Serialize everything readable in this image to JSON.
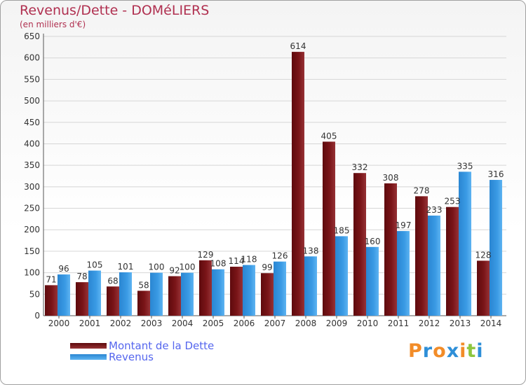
{
  "title": "Revenus/Dette - DOMéLIERS",
  "subtitle": "(en milliers d'€)",
  "brand": "Proxiti",
  "colors": {
    "title": "#b03050",
    "debt": "#7a1518",
    "revenue": "#3a9ae4",
    "legend_text": "#5566ee"
  },
  "chart_data": {
    "type": "bar",
    "title": "Revenus/Dette - DOMéLIERS",
    "subtitle": "(en milliers d'€)",
    "xlabel": "",
    "ylabel": "",
    "ylim": [
      0,
      650
    ],
    "yticks": [
      0,
      50,
      100,
      150,
      200,
      250,
      300,
      350,
      400,
      450,
      500,
      550,
      600,
      650
    ],
    "grid": "horizontal",
    "legend_position": "bottom-left",
    "categories": [
      "2000",
      "2001",
      "2002",
      "2003",
      "2004",
      "2005",
      "2006",
      "2007",
      "2008",
      "2009",
      "2010",
      "2011",
      "2012",
      "2013",
      "2014"
    ],
    "series": [
      {
        "name": "Montant de la Dette",
        "color": "#7a1518",
        "values": [
          71,
          78,
          68,
          58,
          92,
          129,
          114,
          99,
          614,
          405,
          332,
          308,
          278,
          253,
          128
        ]
      },
      {
        "name": "Revenus",
        "color": "#3a9ae4",
        "values": [
          96,
          105,
          101,
          100,
          100,
          108,
          118,
          126,
          138,
          185,
          160,
          197,
          233,
          335,
          316
        ]
      }
    ]
  }
}
